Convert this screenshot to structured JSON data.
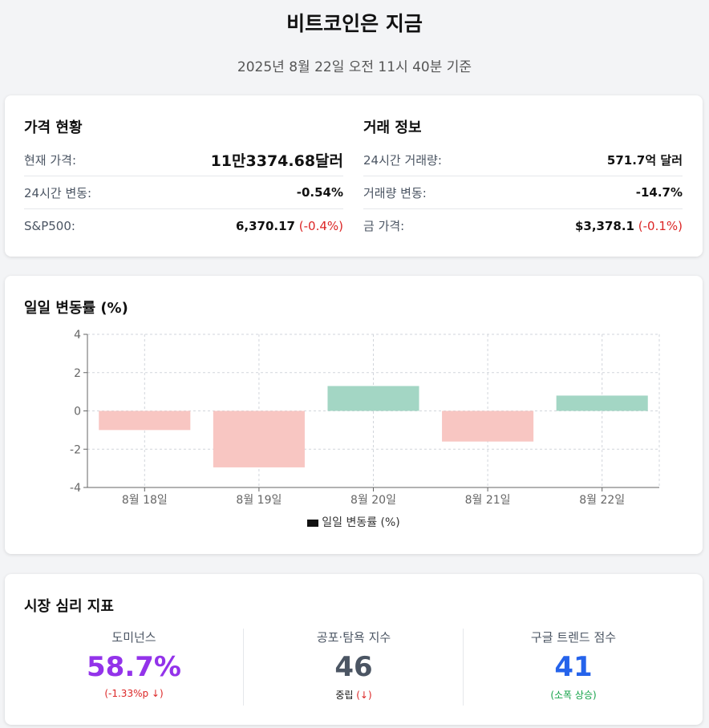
{
  "header": {
    "title": "비트코인은 지금",
    "subtitle": "2025년 8월 22일 오전 11시 40분 기준"
  },
  "price_status": {
    "title": "가격 현황",
    "rows": [
      {
        "label": "현재 가격:",
        "value": "11만3374.68달러"
      },
      {
        "label": "24시간 변동:",
        "value": "-0.54%"
      },
      {
        "label": "S&P500:",
        "value": "6,370.17",
        "change": "(-0.4%)"
      }
    ]
  },
  "trade_info": {
    "title": "거래 정보",
    "rows": [
      {
        "label": "24시간 거래량:",
        "value": "571.7억 달러"
      },
      {
        "label": "거래량 변동:",
        "value": "-14.7%"
      },
      {
        "label": "금 가격:",
        "value": "$3,378.1",
        "change": "(-0.1%)"
      }
    ]
  },
  "chart_section": {
    "title": "일일 변동률 (%)",
    "legend": "일일 변동률 (%)"
  },
  "chart_data": {
    "type": "bar",
    "title": "일일 변동률 (%)",
    "categories": [
      "8월 18일",
      "8월 19일",
      "8월 20일",
      "8월 21일",
      "8월 22일"
    ],
    "series": [
      {
        "name": "일일 변동률 (%)",
        "values": [
          -1.0,
          -2.95,
          1.3,
          -1.6,
          0.8
        ]
      }
    ],
    "ylim": [
      -4,
      4
    ],
    "yticks": [
      4,
      2,
      0,
      -2,
      -4
    ],
    "grid": true,
    "legend_position": "bottom",
    "colors": {
      "positive": "#a3d6c4",
      "negative": "#f8c6c2"
    }
  },
  "sentiment": {
    "title": "시장 심리 지표",
    "metrics": [
      {
        "label": "도미넌스",
        "value": "58.7%",
        "sub": "(-1.33%p ↓)",
        "color": "#9333ea",
        "sub_color": "#dc2626"
      },
      {
        "label": "공포·탐욕 지수",
        "value": "46",
        "sub_main": "중립",
        "sub": "(↓)",
        "color": "#4b5563",
        "sub_color": "#dc2626"
      },
      {
        "label": "구글 트렌드 점수",
        "value": "41",
        "sub": "(소폭 상승)",
        "color": "#2563eb",
        "sub_color": "#16a34a"
      }
    ]
  }
}
